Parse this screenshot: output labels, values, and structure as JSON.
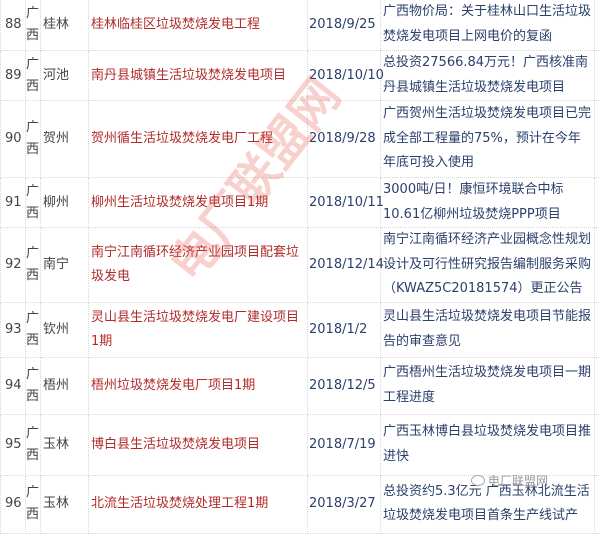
{
  "rows": [
    {
      "no": "88",
      "province": "广西",
      "city": "桂林",
      "project": "桂林临桂区垃圾焚烧发电工程",
      "date": "2018/9/25",
      "desc": "广西物价局：关于桂林山口生活垃圾焚烧发电项目上网电价的复函",
      "h": 52
    },
    {
      "no": "89",
      "province": "广西",
      "city": "河池",
      "project": "南丹县城镇生活垃圾焚烧发电项目",
      "date": "2018/10/10",
      "desc": "总投资27566.84万元！广西核准南丹县城镇生活垃圾焚烧发电项目",
      "h": 49
    },
    {
      "no": "90",
      "province": "广西",
      "city": "贺州",
      "project": "贺州循生活垃圾焚烧发电厂工程",
      "date": "2018/9/28",
      "desc": "广西贺州生活垃圾焚烧发电项目已完成全部工程量的75%，预计在今年年底可投入使用",
      "h": 77
    },
    {
      "no": "91",
      "province": "广西",
      "city": "柳州",
      "project": "柳州生活垃圾焚烧发电项目1期",
      "date": "2018/10/11",
      "desc": "3000吨/日！康恒环境联合中标10.61亿柳州垃圾焚烧PPP项目",
      "h": 45
    },
    {
      "no": "92",
      "province": "广西",
      "city": "南宁",
      "project": "南宁江南循环经济产业园项目配套垃圾发电",
      "date": "2018/12/14",
      "desc": "南宁江南循环经济产业园概念性规划设计及可行性研究报告编制服务采购（KWAZ5C20181574）更正公告",
      "h": 70
    },
    {
      "no": "93",
      "province": "广西",
      "city": "钦州",
      "project": "灵山县生活垃圾焚烧发电厂建设项目1期",
      "date": "2018/1/2",
      "desc": "灵山县生活垃圾焚烧发电项目节能报告的审查意见",
      "h": 55
    },
    {
      "no": "94",
      "province": "广西",
      "city": "梧州",
      "project": "梧州垃圾焚烧发电厂项目1期",
      "date": "2018/12/5",
      "desc": "广西梧州生活垃圾焚烧发电项目一期工程进度",
      "h": 57
    },
    {
      "no": "95",
      "province": "广西",
      "city": "玉林",
      "project": "博白县生活垃圾焚烧发电项目",
      "date": "2018/7/19",
      "desc": "广西玉林博白县垃圾焚烧发电项目推进快",
      "h": 61
    },
    {
      "no": "96",
      "province": "广西",
      "city": "玉林",
      "project": "北流生活垃圾焚烧处理工程1期",
      "date": "2018/3/27",
      "desc": "总投资约5.3亿元 广西玉林北流生活垃圾焚烧发电项目首条生产线试产",
      "h": 58
    }
  ],
  "watermark": "电厂联盟网",
  "logo": "电厂联盟网"
}
